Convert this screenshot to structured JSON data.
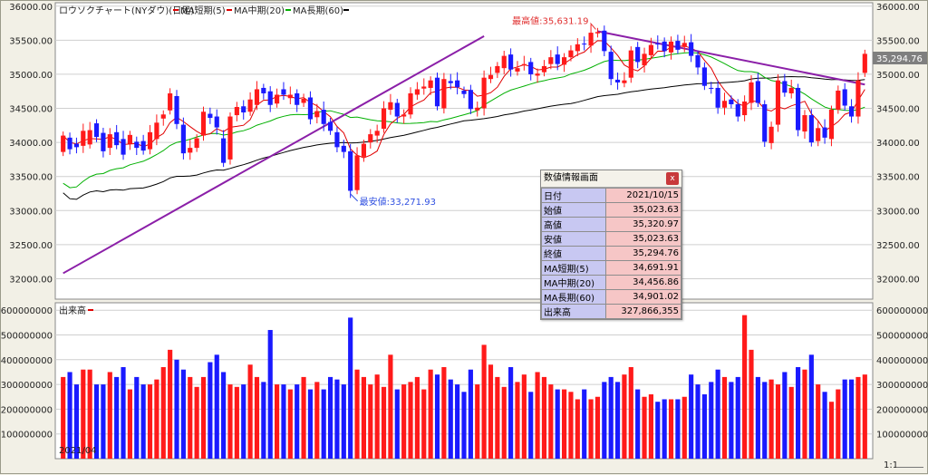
{
  "legend": {
    "title": "ロウソクチャート(NYダウ)(日足)",
    "ma5": "MA短期(5)",
    "ma20": "MA中期(20)",
    "ma60": "MA長期(60)",
    "volume_label": "出来高"
  },
  "date_label": "2021/04",
  "price_axis": [
    {
      "v": 36000,
      "t": "36000.00"
    },
    {
      "v": 35500,
      "t": "35500.00"
    },
    {
      "v": 35000,
      "t": "35000.00"
    },
    {
      "v": 34500,
      "t": "34500.00"
    },
    {
      "v": 34000,
      "t": "34000.00"
    },
    {
      "v": 33500,
      "t": "33500.00"
    },
    {
      "v": 33000,
      "t": "33000.00"
    },
    {
      "v": 32500,
      "t": "32500.00"
    },
    {
      "v": 32000,
      "t": "32000.00"
    }
  ],
  "volume_axis": [
    {
      "v": 600000000,
      "t": "600000000"
    },
    {
      "v": 500000000,
      "t": "500000000"
    },
    {
      "v": 400000000,
      "t": "400000000"
    },
    {
      "v": 300000000,
      "t": "300000000"
    },
    {
      "v": 200000000,
      "t": "200000000"
    },
    {
      "v": 100000000,
      "t": "100000000"
    }
  ],
  "last_price_label": "35,294.76",
  "annotations": {
    "high": "最高値:35,631.19",
    "low": "最安値:33,271.93"
  },
  "info_panel": {
    "title": "数値情報画面",
    "close_label": "x",
    "rows": [
      {
        "k": "日付",
        "v": "2021/10/15"
      },
      {
        "k": "始値",
        "v": "35,023.63"
      },
      {
        "k": "高値",
        "v": "35,320.97"
      },
      {
        "k": "安値",
        "v": "35,023.63"
      },
      {
        "k": "終値",
        "v": "35,294.76"
      },
      {
        "k": "MA短期(5)",
        "v": "34,691.91"
      },
      {
        "k": "MA中期(20)",
        "v": "34,456.86"
      },
      {
        "k": "MA長期(60)",
        "v": "34,901.02"
      },
      {
        "k": "出来高",
        "v": "327,866,355"
      }
    ]
  },
  "zoom_label": "1:1",
  "colors": {
    "up": "#ff1a1a",
    "down": "#1a1aff",
    "ma5": "#e00000",
    "ma20": "#00b000",
    "ma60": "#000000",
    "trendline": "#8b1fa8",
    "grid": "#cfcfcf"
  },
  "chart_data": {
    "type": "candlestick",
    "price_range": [
      31700,
      36050
    ],
    "volume_range": [
      0,
      630000000
    ],
    "trendlines": [
      {
        "from": [
          0,
          32080
        ],
        "to": [
          63,
          35560
        ]
      },
      {
        "from": [
          80,
          35631
        ],
        "to": [
          120,
          34850
        ]
      }
    ],
    "high_point": {
      "index": 80,
      "value": 35631.19
    },
    "low_point": {
      "index": 43,
      "value": 33271.93
    },
    "closes": [
      34100,
      33900,
      33930,
      34170,
      34180,
      34080,
      33870,
      34120,
      33960,
      33820,
      34110,
      33920,
      33880,
      34150,
      34290,
      34410,
      34720,
      34270,
      33840,
      33920,
      34060,
      34450,
      34360,
      34220,
      33700,
      34380,
      34520,
      34440,
      34630,
      34780,
      34720,
      34550,
      34700,
      34700,
      34700,
      34550,
      34640,
      34340,
      34460,
      34270,
      34170,
      33930,
      33860,
      33290,
      33810,
      33980,
      34120,
      34170,
      34500,
      34590,
      34380,
      34410,
      34720,
      34780,
      34820,
      34910,
      34530,
      34930,
      34870,
      34810,
      34710,
      34490,
      34510,
      34950,
      34990,
      35120,
      35270,
      35070,
      35090,
      35150,
      35000,
      35010,
      35120,
      35250,
      35150,
      35250,
      35350,
      35440,
      35440,
      35610,
      35620,
      35340,
      34930,
      34880,
      34910,
      35350,
      35180,
      35300,
      35430,
      35440,
      35340,
      35480,
      35360,
      35460,
      35270,
      35100,
      34830,
      34790,
      34510,
      34610,
      34560,
      34380,
      34600,
      34880,
      34580,
      34010,
      34230,
      34910,
      34730,
      34800,
      34180,
      34400,
      34000,
      34210,
      34070,
      34480,
      34760,
      34540,
      34380,
      34910,
      35300
    ],
    "opens": [
      33860,
      34070,
      33980,
      33950,
      33970,
      34280,
      34140,
      33920,
      34150,
      34050,
      33980,
      34010,
      34020,
      33900,
      34050,
      34350,
      34470,
      34680,
      34260,
      33850,
      33920,
      34100,
      34420,
      34380,
      34060,
      33750,
      34400,
      34530,
      34450,
      34550,
      34800,
      34750,
      34570,
      34780,
      34650,
      34720,
      34580,
      34660,
      34370,
      34480,
      34300,
      34150,
      33950,
      33870,
      33300,
      33790,
      34000,
      34100,
      34200,
      34480,
      34580,
      34380,
      34410,
      34700,
      34790,
      34800,
      34950,
      34500,
      34900,
      34910,
      34760,
      34770,
      34470,
      34500,
      34930,
      35020,
      35090,
      35290,
      35040,
      35130,
      35180,
      34980,
      35030,
      35150,
      35290,
      35140,
      35250,
      35340,
      35450,
      35420,
      35600,
      35640,
      35330,
      34920,
      34870,
      34950,
      35400,
      35130,
      35280,
      35450,
      35480,
      35320,
      35490,
      35400,
      35470,
      35280,
      35100,
      34800,
      34800,
      34510,
      34630,
      34560,
      34400,
      34580,
      34900,
      34560,
      33990,
      34260,
      34900,
      34720,
      34800,
      34160,
      34400,
      34020,
      34220,
      34050,
      34480,
      34780,
      34530,
      34380,
      35020
    ],
    "volumes": [
      330000000,
      350000000,
      300000000,
      360000000,
      360000000,
      300000000,
      300000000,
      350000000,
      330000000,
      370000000,
      280000000,
      330000000,
      300000000,
      300000000,
      320000000,
      370000000,
      440000000,
      400000000,
      360000000,
      330000000,
      290000000,
      330000000,
      390000000,
      420000000,
      350000000,
      300000000,
      290000000,
      300000000,
      380000000,
      330000000,
      310000000,
      520000000,
      300000000,
      300000000,
      280000000,
      300000000,
      330000000,
      280000000,
      310000000,
      280000000,
      330000000,
      320000000,
      300000000,
      570000000,
      360000000,
      330000000,
      300000000,
      340000000,
      290000000,
      420000000,
      280000000,
      300000000,
      310000000,
      330000000,
      280000000,
      360000000,
      340000000,
      370000000,
      320000000,
      300000000,
      270000000,
      360000000,
      300000000,
      460000000,
      380000000,
      330000000,
      290000000,
      370000000,
      310000000,
      340000000,
      270000000,
      350000000,
      330000000,
      300000000,
      280000000,
      280000000,
      270000000,
      240000000,
      280000000,
      240000000,
      250000000,
      310000000,
      330000000,
      310000000,
      340000000,
      370000000,
      280000000,
      250000000,
      260000000,
      230000000,
      240000000,
      240000000,
      240000000,
      250000000,
      340000000,
      300000000,
      260000000,
      310000000,
      360000000,
      330000000,
      310000000,
      330000000,
      580000000,
      440000000,
      330000000,
      310000000,
      320000000,
      300000000,
      350000000,
      290000000,
      370000000,
      360000000,
      420000000,
      300000000,
      270000000,
      230000000,
      280000000,
      320000000,
      320000000,
      330000000,
      340000000
    ]
  }
}
